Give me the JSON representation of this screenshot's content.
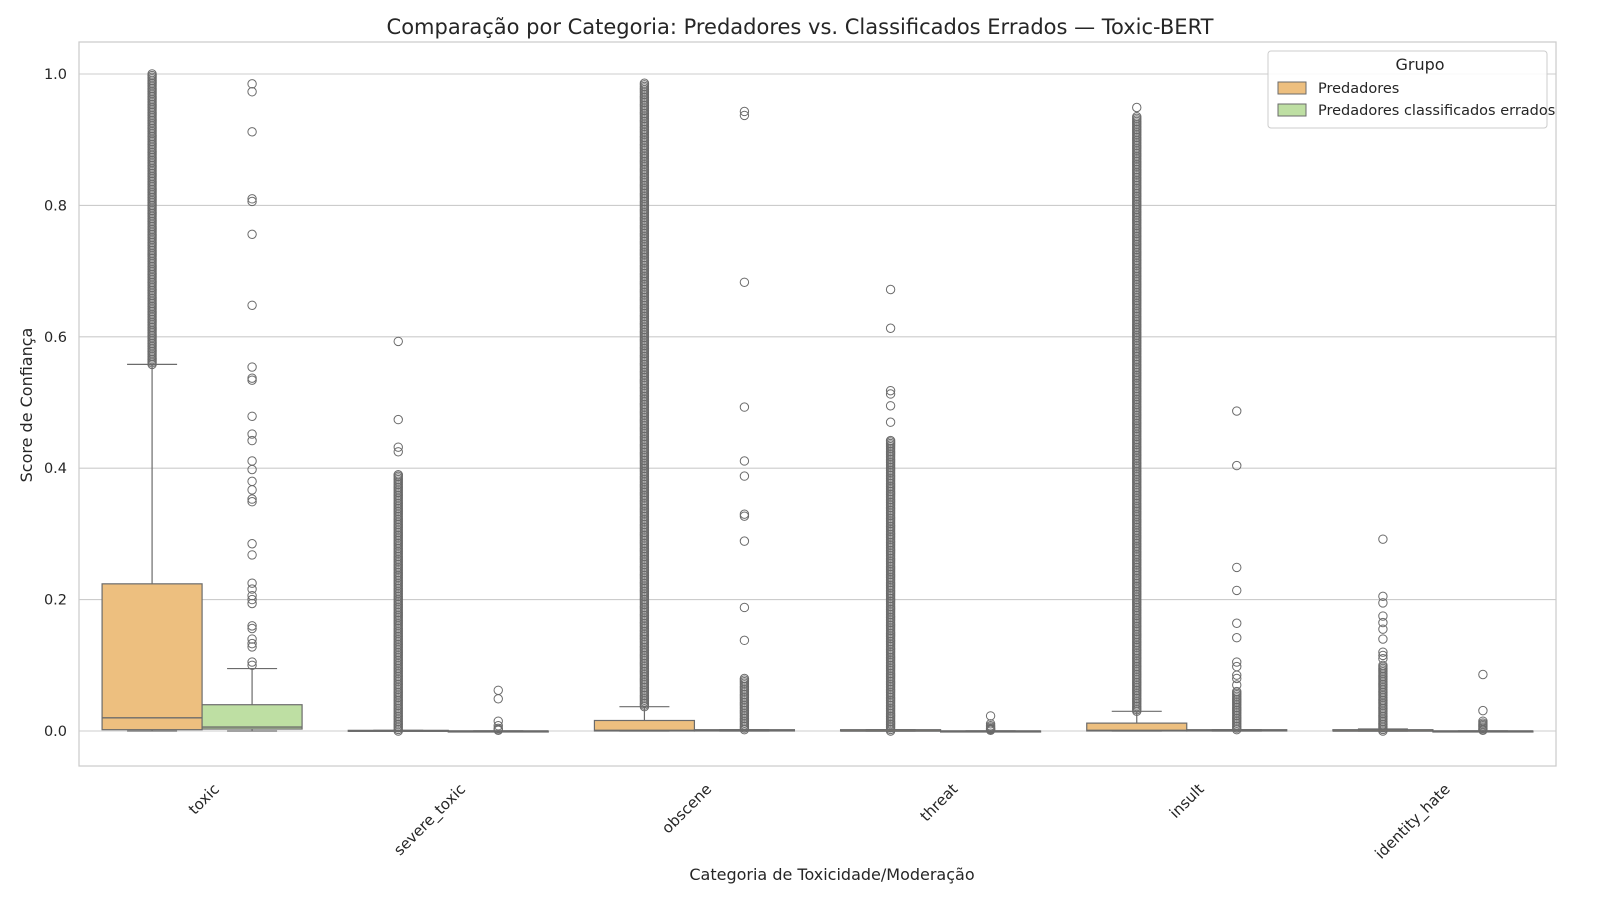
{
  "chart_data": {
    "type": "box",
    "title": "Comparação por Categoria: Predadores vs. Classificados Errados — Toxic-BERT",
    "xlabel": "Categoria de Toxicidade/Moderação",
    "ylabel": "Score de Confiança",
    "ylim": [
      -0.05,
      1.05
    ],
    "yticks": [
      "0.0",
      "0.2",
      "0.4",
      "0.6",
      "0.8",
      "1.0"
    ],
    "categories": [
      "toxic",
      "severe_toxic",
      "obscene",
      "threat",
      "insult",
      "identity_hate"
    ],
    "grid": true,
    "legend": {
      "title": "Grupo",
      "placement": "top-right"
    },
    "series": [
      {
        "name": "Predadores",
        "color": "#edbf7f",
        "boxes": [
          {
            "min": 0.0,
            "q1": 0.002,
            "median": 0.02,
            "q3": 0.224,
            "max": 0.558,
            "outlier_range": [
              0.558,
              1.0
            ],
            "outliers": []
          },
          {
            "min": 0.0,
            "q1": 0.0,
            "median": 0.0,
            "q3": 0.001,
            "max": 0.001,
            "outlier_range": [
              0.0,
              0.39
            ],
            "outliers": [
              0.593,
              0.474,
              0.432,
              0.425,
              0.39
            ]
          },
          {
            "min": 0.0,
            "q1": 0.0,
            "median": 0.001,
            "q3": 0.016,
            "max": 0.037,
            "outlier_range": [
              0.037,
              0.986
            ],
            "outliers": []
          },
          {
            "min": 0.0,
            "q1": 0.0,
            "median": 0.0,
            "q3": 0.002,
            "max": 0.002,
            "outlier_range": [
              0.0,
              0.44
            ],
            "outliers": [
              0.672,
              0.613,
              0.518,
              0.513,
              0.495,
              0.47,
              0.442
            ]
          },
          {
            "min": 0.0,
            "q1": 0.0,
            "median": 0.001,
            "q3": 0.012,
            "max": 0.03,
            "outlier_range": [
              0.03,
              0.935
            ],
            "outliers": [
              0.949
            ]
          },
          {
            "min": 0.0,
            "q1": 0.0,
            "median": 0.0,
            "q3": 0.002,
            "max": 0.003,
            "outlier_range": [
              0.0,
              0.1
            ],
            "outliers": [
              0.292,
              0.205,
              0.195,
              0.175,
              0.165,
              0.155,
              0.14,
              0.12,
              0.115,
              0.11
            ]
          }
        ]
      },
      {
        "name": "Predadores classificados errados",
        "color": "#bedfa3",
        "boxes": [
          {
            "min": 0.0,
            "q1": 0.003,
            "median": 0.006,
            "q3": 0.04,
            "max": 0.095,
            "outlier_range": null,
            "outliers": [
              0.985,
              0.973,
              0.912,
              0.81,
              0.806,
              0.756,
              0.648,
              0.554,
              0.537,
              0.534,
              0.479,
              0.452,
              0.442,
              0.411,
              0.398,
              0.38,
              0.367,
              0.353,
              0.349,
              0.285,
              0.268,
              0.225,
              0.216,
              0.206,
              0.2,
              0.194,
              0.16,
              0.156,
              0.14,
              0.133,
              0.128,
              0.105,
              0.1
            ]
          },
          {
            "min": 0.0,
            "q1": 0.0,
            "median": 0.0,
            "q3": 0.0,
            "max": 0.0,
            "outlier_range": null,
            "outliers": [
              0.062,
              0.049,
              0.015,
              0.008,
              0.004,
              0.002,
              0.001
            ]
          },
          {
            "min": 0.0,
            "q1": 0.0,
            "median": 0.001,
            "q3": 0.002,
            "max": 0.002,
            "outlier_range": [
              0.002,
              0.08
            ],
            "outliers": [
              0.943,
              0.937,
              0.683,
              0.493,
              0.411,
              0.388,
              0.33,
              0.327,
              0.289,
              0.188,
              0.138
            ]
          },
          {
            "min": 0.0,
            "q1": 0.0,
            "median": 0.0,
            "q3": 0.0,
            "max": 0.0,
            "outlier_range": null,
            "outliers": [
              0.023,
              0.011,
              0.008,
              0.006,
              0.004,
              0.003,
              0.002,
              0.001
            ]
          },
          {
            "min": 0.0,
            "q1": 0.0,
            "median": 0.001,
            "q3": 0.002,
            "max": 0.002,
            "outlier_range": [
              0.002,
              0.06
            ],
            "outliers": [
              0.487,
              0.404,
              0.249,
              0.214,
              0.164,
              0.142,
              0.105,
              0.098,
              0.085,
              0.08,
              0.07
            ]
          },
          {
            "min": 0.0,
            "q1": 0.0,
            "median": 0.0,
            "q3": 0.0,
            "max": 0.0,
            "outlier_range": null,
            "outliers": [
              0.086,
              0.031,
              0.015,
              0.012,
              0.01,
              0.008,
              0.006,
              0.004,
              0.002,
              0.001
            ]
          }
        ]
      }
    ]
  }
}
